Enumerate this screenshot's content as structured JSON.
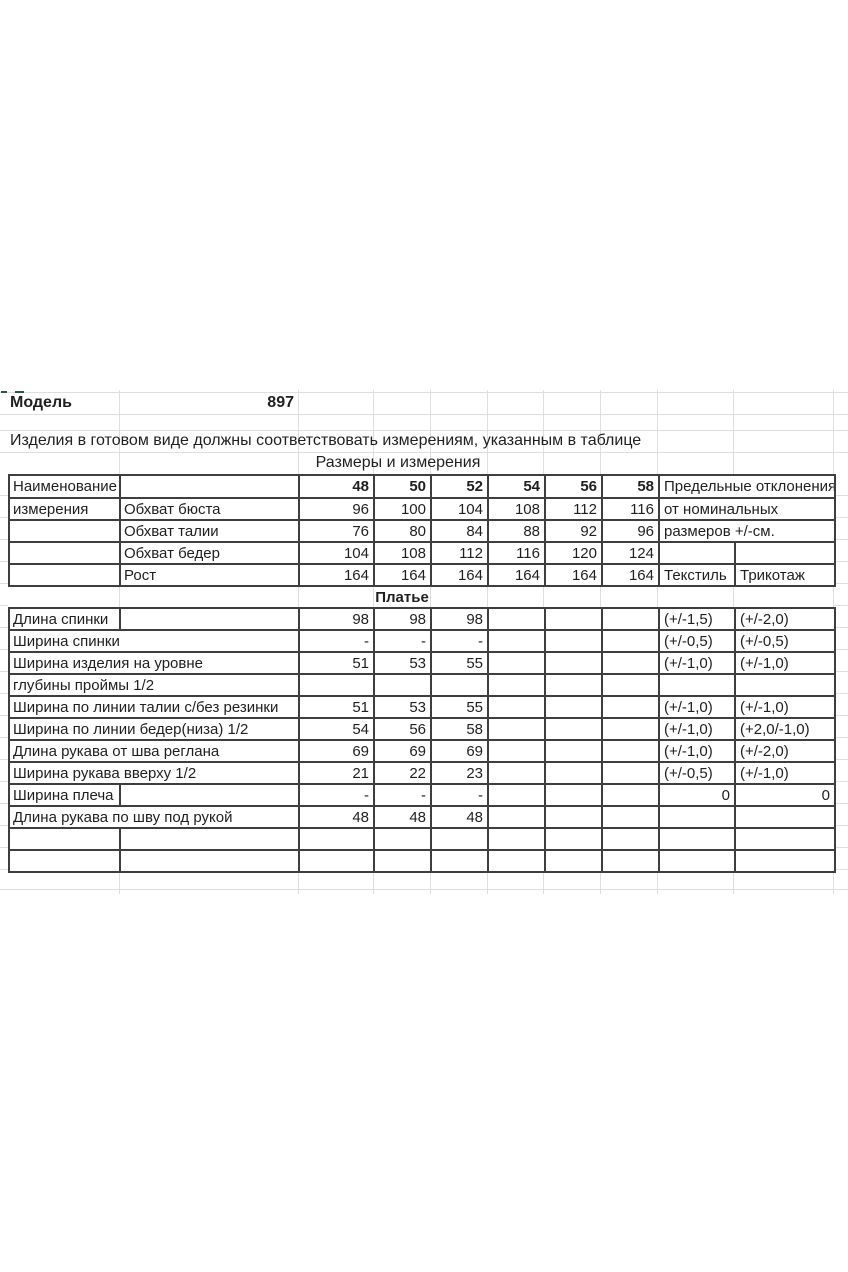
{
  "sheet": {
    "model_label": "Модель",
    "model_number": "897",
    "note": "Изделия в готовом виде должны соответствовать измерениям, указанным в таблице",
    "size_table_title": "Размеры и измерения"
  },
  "table": {
    "rows": [
      {
        "type": "header",
        "a": "Наименование",
        "b": "",
        "vals": [
          "48",
          "50",
          "52",
          "54",
          "56",
          "58"
        ],
        "right": {
          "merged": "Предельные отклонения"
        }
      },
      {
        "type": "split",
        "a": "измерения",
        "b": "Обхват бюста",
        "vals": [
          "96",
          "100",
          "104",
          "108",
          "112",
          "116"
        ],
        "right": {
          "merged": "от номинальных"
        }
      },
      {
        "type": "split",
        "a": "",
        "b": "Обхват талии",
        "vals": [
          "76",
          "80",
          "84",
          "88",
          "92",
          "96"
        ],
        "right": {
          "merged": "размеров +/-см."
        }
      },
      {
        "type": "split",
        "a": "",
        "b": "Обхват бедер",
        "vals": [
          "104",
          "108",
          "112",
          "116",
          "120",
          "124"
        ],
        "right": {
          "c1": "",
          "c2": ""
        }
      },
      {
        "type": "split",
        "a": "",
        "b": "Рост",
        "vals": [
          "164",
          "164",
          "164",
          "164",
          "164",
          "164"
        ],
        "right": {
          "c1": "Текстиль",
          "c2": "Трикотаж"
        }
      },
      {
        "type": "section",
        "title": "Платье"
      },
      {
        "type": "split",
        "a": "Длина спинки",
        "b": "",
        "vals": [
          "98",
          "98",
          "98",
          "",
          "",
          ""
        ],
        "right": {
          "c1": "(+/-1,5)",
          "c2": "(+/-2,0)"
        }
      },
      {
        "type": "merged",
        "label": "Ширина спинки",
        "vals": [
          "-",
          "-",
          "-",
          "",
          "",
          ""
        ],
        "right": {
          "c1": "(+/-0,5)",
          "c2": "(+/-0,5)"
        }
      },
      {
        "type": "merged",
        "label": "Ширина изделия на уровне",
        "vals": [
          "51",
          "53",
          "55",
          "",
          "",
          ""
        ],
        "right": {
          "c1": "(+/-1,0)",
          "c2": "(+/-1,0)"
        }
      },
      {
        "type": "merged",
        "label": "глубины проймы 1/2",
        "vals": [
          "",
          "",
          "",
          "",
          "",
          ""
        ],
        "right": {
          "c1": "",
          "c2": ""
        }
      },
      {
        "type": "merged",
        "label": "Ширина по линии талии с/без резинки",
        "vals": [
          "51",
          "53",
          "55",
          "",
          "",
          ""
        ],
        "right": {
          "c1": "(+/-1,0)",
          "c2": "(+/-1,0)"
        }
      },
      {
        "type": "merged",
        "label": "Ширина по линии бедер(низа) 1/2",
        "vals": [
          "54",
          "56",
          "58",
          "",
          "",
          ""
        ],
        "right": {
          "c1": "(+/-1,0)",
          "c2": "(+2,0/-1,0)"
        }
      },
      {
        "type": "merged",
        "label": "Длина рукава от шва реглана",
        "vals": [
          "69",
          "69",
          "69",
          "",
          "",
          ""
        ],
        "right": {
          "c1": "(+/-1,0)",
          "c2": "(+/-2,0)"
        }
      },
      {
        "type": "merged",
        "label": "Ширина рукава вверху 1/2",
        "vals": [
          "21",
          "22",
          "23",
          "",
          "",
          ""
        ],
        "right": {
          "c1": "(+/-0,5)",
          "c2": "(+/-1,0)"
        }
      },
      {
        "type": "split",
        "a": "Ширина плеча",
        "b": "",
        "vals": [
          "-",
          "-",
          "-",
          "",
          "",
          ""
        ],
        "right": {
          "c1": "0",
          "c2": "0",
          "align": "right"
        }
      },
      {
        "type": "merged",
        "label": "Длина рукава по шву под рукой",
        "vals": [
          "48",
          "48",
          "48",
          "",
          "",
          ""
        ],
        "right": {
          "c1": "",
          "c2": ""
        }
      },
      {
        "type": "split",
        "a": "",
        "b": "",
        "vals": [
          "",
          "",
          "",
          "",
          "",
          ""
        ],
        "right": {
          "c1": "",
          "c2": ""
        }
      },
      {
        "type": "split",
        "a": "",
        "b": "",
        "vals": [
          "",
          "",
          "",
          "",
          "",
          ""
        ],
        "right": {
          "c1": "",
          "c2": ""
        }
      }
    ]
  },
  "colors": {
    "background": "#ffffff",
    "strong_border": "#3e3e3e",
    "faint_gridline": "#dedede",
    "text": "#1f1f1f",
    "marker_green": "#2f5247"
  }
}
